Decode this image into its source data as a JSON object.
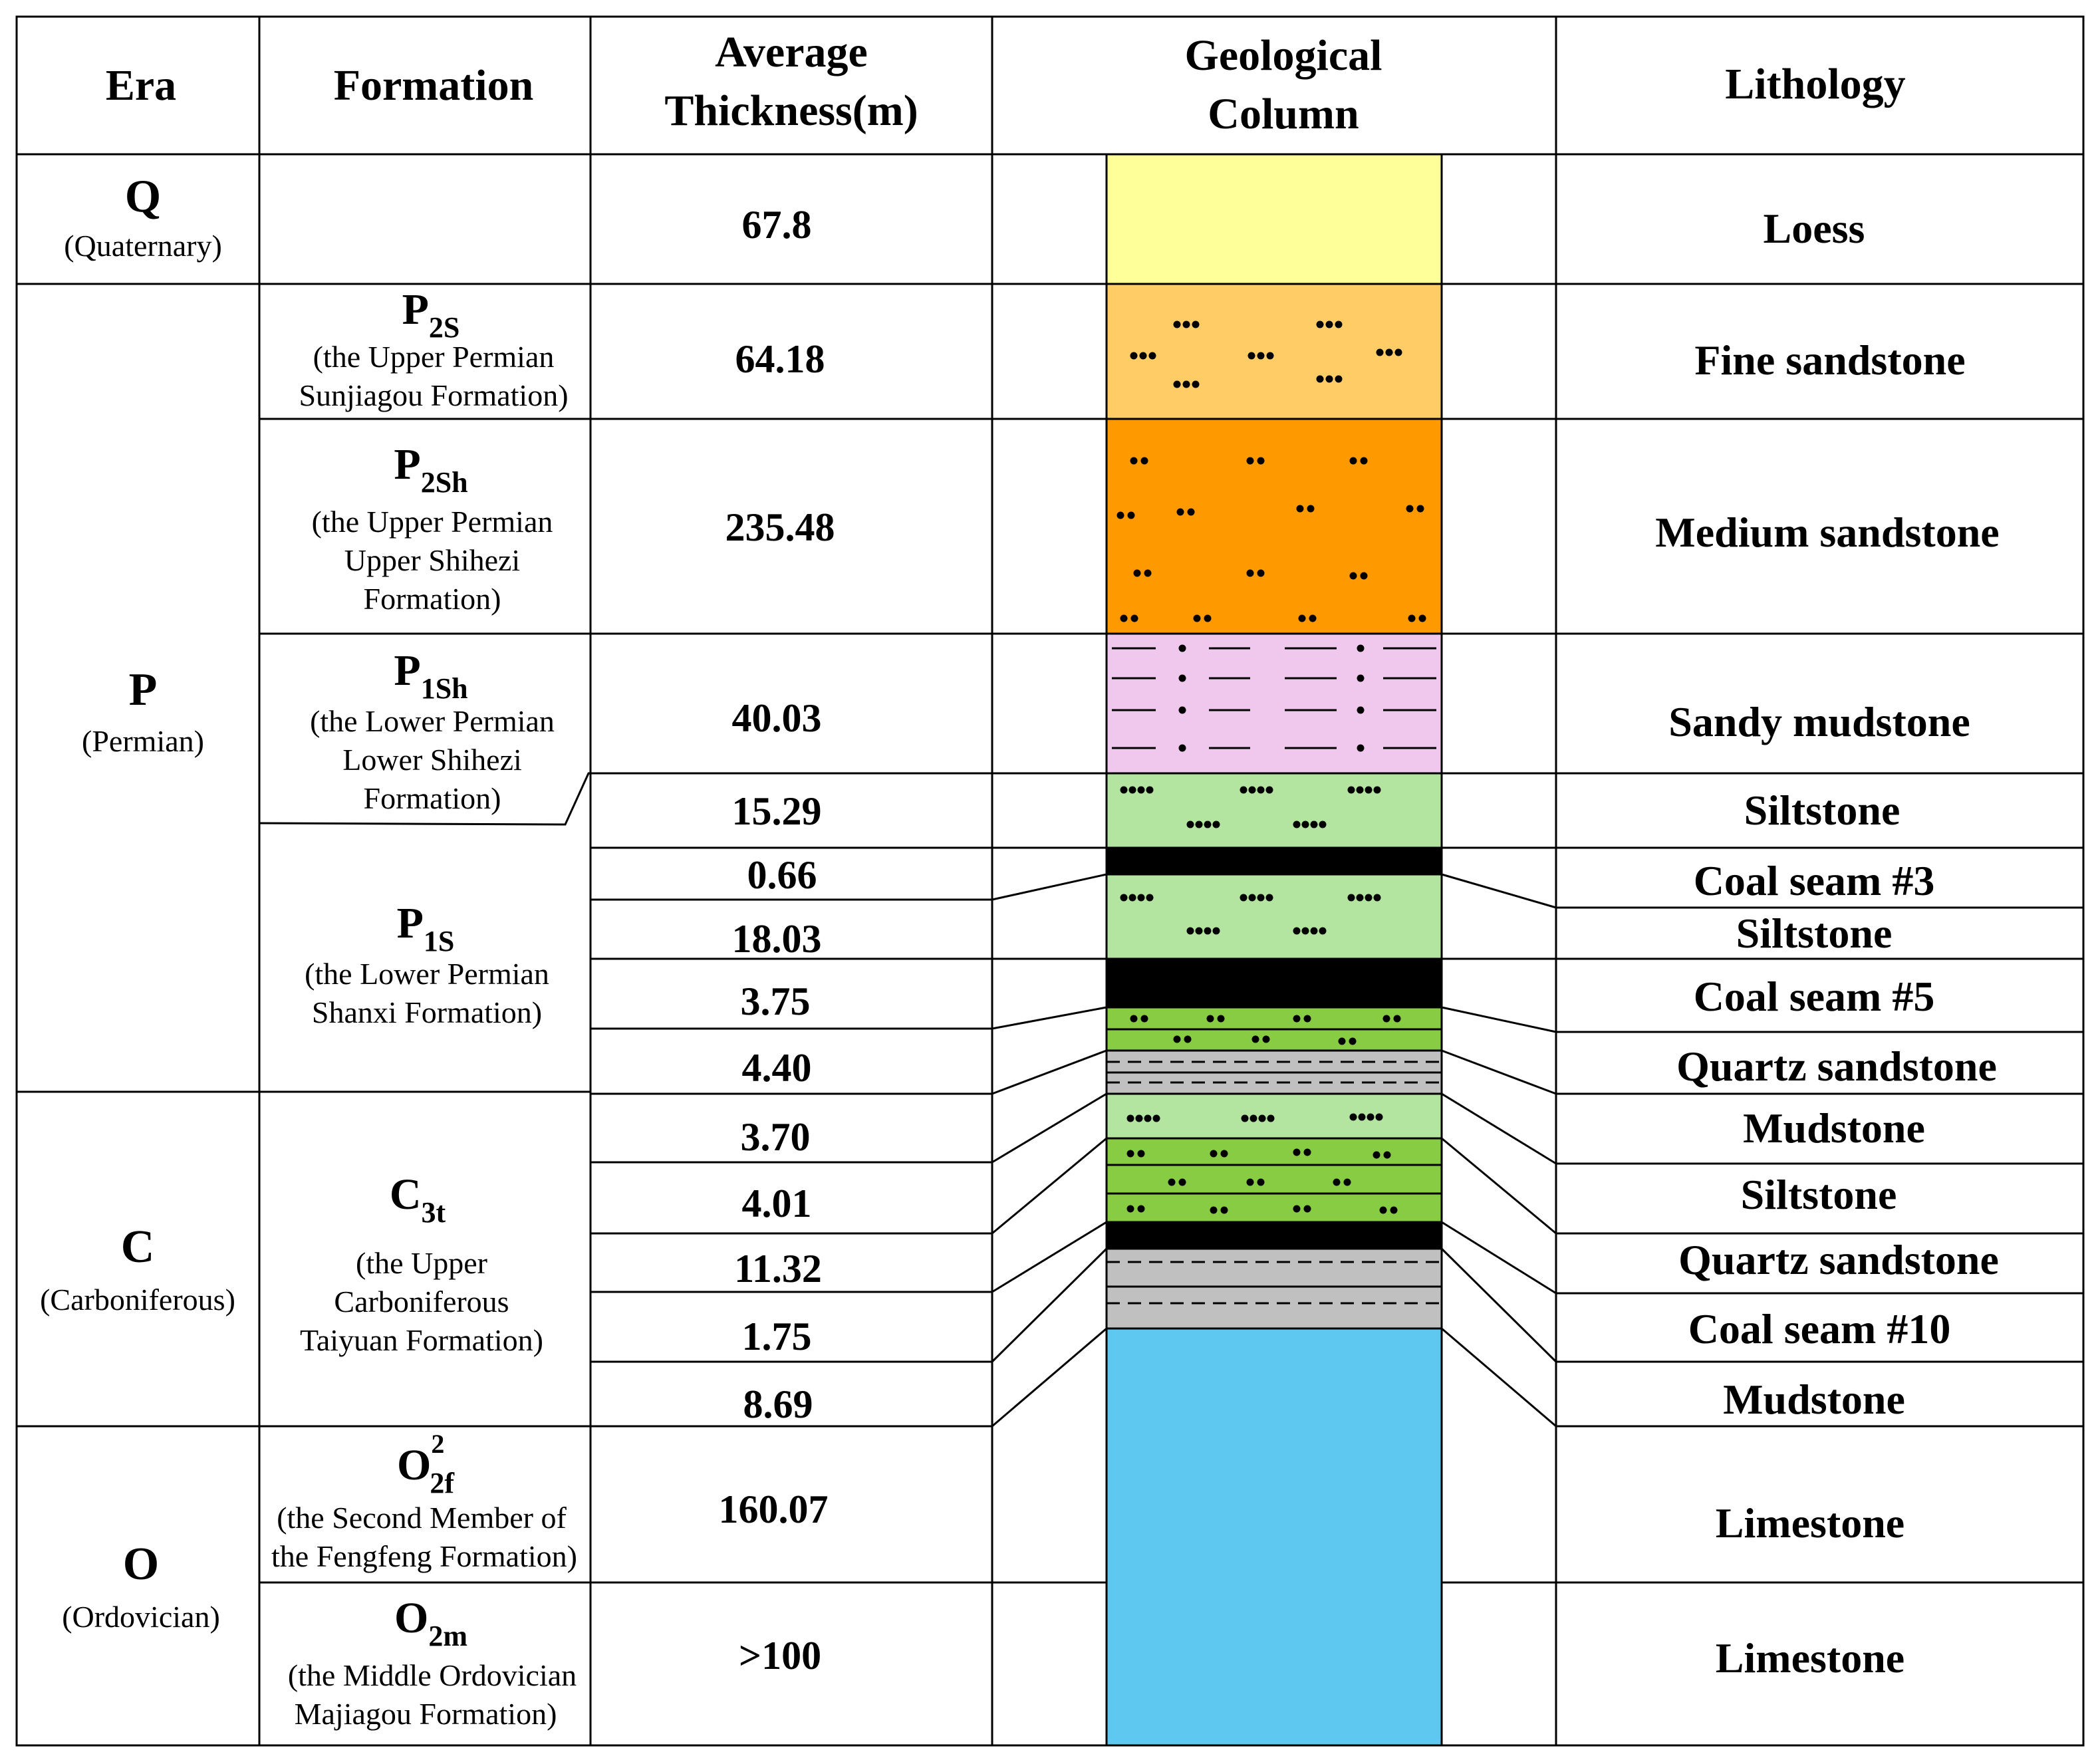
{
  "headers": {
    "era": "Era",
    "formation": "Formation",
    "thickness_line1": "Average",
    "thickness_line2": "Thickness(m)",
    "column_line1": "Geological",
    "column_line2": "Column",
    "lithology": "Lithology"
  },
  "eras": [
    {
      "symbol": "Q",
      "name": "(Quaternary)"
    },
    {
      "symbol": "P",
      "name": "(Permian)"
    },
    {
      "symbol": "C",
      "name": "(Carboniferous)"
    },
    {
      "symbol": "O",
      "name": "(Ordovician)"
    }
  ],
  "formations": [
    {
      "symbol": "P",
      "subscript": "2S",
      "superscript": "",
      "lines": [
        "(the Upper Permian",
        "Sunjiagou Formation)"
      ]
    },
    {
      "symbol": "P",
      "subscript": "2Sh",
      "superscript": "",
      "lines": [
        "(the Upper Permian",
        "Upper Shihezi",
        "Formation)"
      ]
    },
    {
      "symbol": "P",
      "subscript": "1Sh",
      "superscript": "",
      "lines": [
        "(the Lower Permian",
        "Lower Shihezi",
        "Formation)"
      ]
    },
    {
      "symbol": "P",
      "subscript": "1S",
      "superscript": "",
      "lines": [
        "(the Lower Permian",
        "Shanxi Formation)"
      ]
    },
    {
      "symbol": "C",
      "subscript": "3t",
      "superscript": "",
      "lines": [
        "(the Upper",
        "Carboniferous",
        "Taiyuan Formation)"
      ]
    },
    {
      "symbol": "O",
      "subscript": "2f",
      "superscript": "2",
      "lines": [
        "(the Second Member of",
        "the Fengfeng Formation)"
      ]
    },
    {
      "symbol": "O",
      "subscript": "2m",
      "superscript": "",
      "lines": [
        "(the Middle Ordovician",
        "Majiagou Formation)"
      ]
    }
  ],
  "thicknesses": [
    "67.8",
    "64.18",
    "235.48",
    "40.03",
    "15.29",
    "0.66",
    "18.03",
    "3.75",
    "4.40",
    "3.70",
    "4.01",
    "11.32",
    "1.75",
    "8.69",
    "160.07",
    ">100"
  ],
  "lithologies": [
    "Loess",
    "Fine sandstone",
    "Medium sandstone",
    "Sandy mudstone",
    "Siltstone",
    "Coal seam #3",
    "Siltstone",
    "Coal seam #5",
    "Quartz sandstone",
    "Mudstone",
    "Siltstone",
    "Quartz sandstone",
    "Coal seam #10",
    "Mudstone",
    "Limestone",
    "Limestone"
  ],
  "column_layers": [
    {
      "rock": "loess",
      "color": "#ffff99"
    },
    {
      "rock": "fine-sandstone",
      "color": "#ffcc66"
    },
    {
      "rock": "medium-sandstone",
      "color": "#ff9900"
    },
    {
      "rock": "sandy-mudstone",
      "color": "#f0c8ee"
    },
    {
      "rock": "siltstone",
      "color": "#b3e5a0"
    },
    {
      "rock": "coal",
      "color": "#000000"
    },
    {
      "rock": "siltstone",
      "color": "#b3e5a0"
    },
    {
      "rock": "coal",
      "color": "#000000"
    },
    {
      "rock": "quartz-sandstone",
      "color": "#88cc44"
    },
    {
      "rock": "mudstone",
      "color": "#c0c0c0"
    },
    {
      "rock": "siltstone",
      "color": "#b3e5a0"
    },
    {
      "rock": "quartz-sandstone",
      "color": "#88cc44"
    },
    {
      "rock": "coal",
      "color": "#000000"
    },
    {
      "rock": "mudstone",
      "color": "#c0c0c0"
    },
    {
      "rock": "limestone",
      "color": "#5ec8f0"
    }
  ]
}
